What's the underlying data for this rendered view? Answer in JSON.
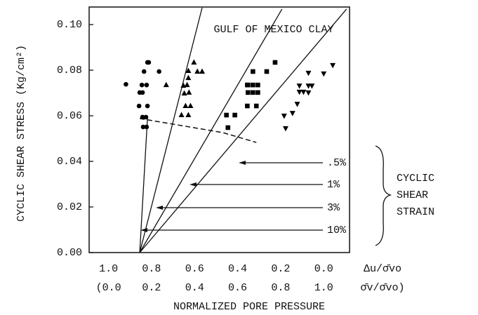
{
  "chart_data": {
    "type": "scatter",
    "title": "GULF OF MEXICO CLAY",
    "ylabel": "CYCLIC SHEAR STRESS (Kg/cm²)",
    "xlabel": "NORMALIZED PORE PRESSURE",
    "x_axis_name": "Δu/σ̄vo",
    "x2_axis_name": "σ̄v/σ̄vo)",
    "xlim": [
      1.09,
      -0.12
    ],
    "x2lim": [
      -0.09,
      1.12
    ],
    "ylim": [
      0,
      0.1077
    ],
    "xticks": [
      {
        "value": 1,
        "label": "1.0"
      },
      0.8,
      0.6,
      0.4,
      0.2,
      {
        "value": 0,
        "label": "0.0"
      }
    ],
    "x2ticks": [
      {
        "value": 0,
        "label": "(0.0"
      },
      0.2,
      0.4,
      0.6,
      0.8,
      {
        "value": 1,
        "label": "1.0"
      }
    ],
    "yticks": [
      {
        "value": 0,
        "label": "0.00"
      },
      0.02,
      0.04,
      0.06,
      0.08,
      {
        "value": 0.1,
        "label": "0.10"
      }
    ],
    "series": [
      {
        "marker": "circle",
        "color": "#000000",
        "x": [
          0.919,
          0.845,
          0.819,
          0.835,
          0.823,
          0.842,
          0.855,
          0.858,
          0.819,
          0.826,
          0.842,
          0.823,
          0.839,
          0.765,
          0.813
        ],
        "values": [
          0.0738,
          0.0735,
          0.0834,
          0.0794,
          0.0735,
          0.0702,
          0.0702,
          0.0643,
          0.0643,
          0.0594,
          0.0594,
          0.0551,
          0.0551,
          0.0794,
          0.0834
        ]
      },
      {
        "marker": "triangle",
        "color": "#000000",
        "x": [
          0.732,
          0.652,
          0.635,
          0.629,
          0.648,
          0.626,
          0.642,
          0.619,
          0.661,
          0.629,
          0.603,
          0.587,
          0.565,
          0.629
        ],
        "values": [
          0.0735,
          0.0732,
          0.0735,
          0.0766,
          0.0698,
          0.0702,
          0.0643,
          0.0643,
          0.0603,
          0.0603,
          0.0834,
          0.0794,
          0.0794,
          0.0797
        ]
      },
      {
        "marker": "square",
        "color": "#000000",
        "x": [
          0.445,
          0.452,
          0.413,
          0.355,
          0.329,
          0.306,
          0.352,
          0.329,
          0.306,
          0.355,
          0.313,
          0.329,
          0.265,
          0.226,
          0.352
        ],
        "values": [
          0.0548,
          0.0603,
          0.0603,
          0.0735,
          0.0735,
          0.0735,
          0.0702,
          0.0702,
          0.0702,
          0.0643,
          0.0643,
          0.0794,
          0.0794,
          0.0834,
          0.0735
        ]
      },
      {
        "marker": "triangle-down",
        "color": "#000000",
        "x": [
          0.184,
          0.177,
          0.145,
          0.123,
          0.113,
          0.094,
          0.113,
          0.071,
          0.055,
          0.071,
          0.071,
          0.0,
          -0.042
        ],
        "values": [
          0.06,
          0.0545,
          0.0612,
          0.0652,
          0.0705,
          0.0705,
          0.0732,
          0.0732,
          0.0732,
          0.0788,
          0.0702,
          0.0785,
          0.0822
        ]
      }
    ],
    "lines": [
      {
        "x": [
          0.855,
          0.819
        ],
        "values": [
          0,
          0.0588
        ]
      },
      {
        "x": [
          0.855,
          0.565
        ],
        "values": [
          0,
          0.1074
        ]
      },
      {
        "x": [
          0.855,
          0.194
        ],
        "values": [
          0,
          0.1068
        ]
      },
      {
        "x": [
          0.855,
          -0.106
        ],
        "values": [
          0,
          0.1068
        ]
      }
    ],
    "dashed_curve": {
      "x": [
        0.855,
        0.661,
        0.468,
        0.313
      ],
      "values": [
        0.0588,
        0.0557,
        0.0526,
        0.0483
      ]
    },
    "strain_labels": [
      ".5%",
      "1%",
      "3%",
      "10%"
    ],
    "strain_title": [
      "CYCLIC",
      "SHEAR",
      "STRAIN"
    ]
  }
}
